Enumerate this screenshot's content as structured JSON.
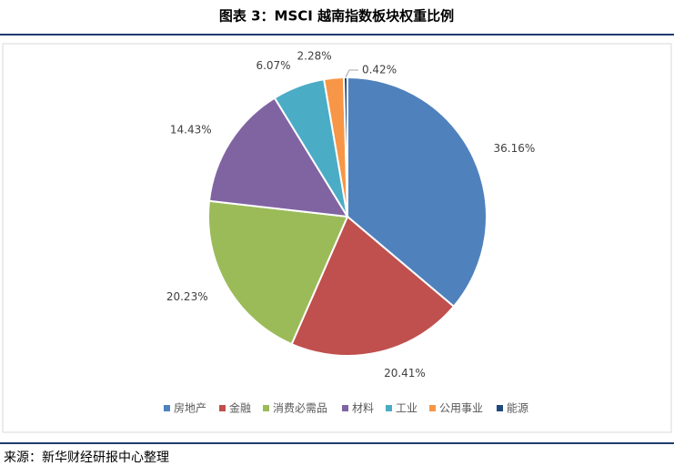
{
  "chart_data": {
    "type": "pie",
    "title": "图表 3：MSCI 越南指数板块权重比例",
    "categories": [
      "房地产",
      "金融",
      "消费必需品",
      "材料",
      "工业",
      "公用事业",
      "能源"
    ],
    "values": [
      36.16,
      20.41,
      20.23,
      14.43,
      6.07,
      2.28,
      0.42
    ],
    "value_labels": [
      "36.16%",
      "20.41%",
      "20.23%",
      "14.43%",
      "6.07%",
      "2.28%",
      "0.42%"
    ],
    "colors": [
      "#4f81bd",
      "#c0504d",
      "#9bbb59",
      "#8064a2",
      "#4bacc6",
      "#f79646",
      "#1f497d"
    ],
    "legend": "bottom",
    "source": "来源：新华财经研报中心整理"
  }
}
